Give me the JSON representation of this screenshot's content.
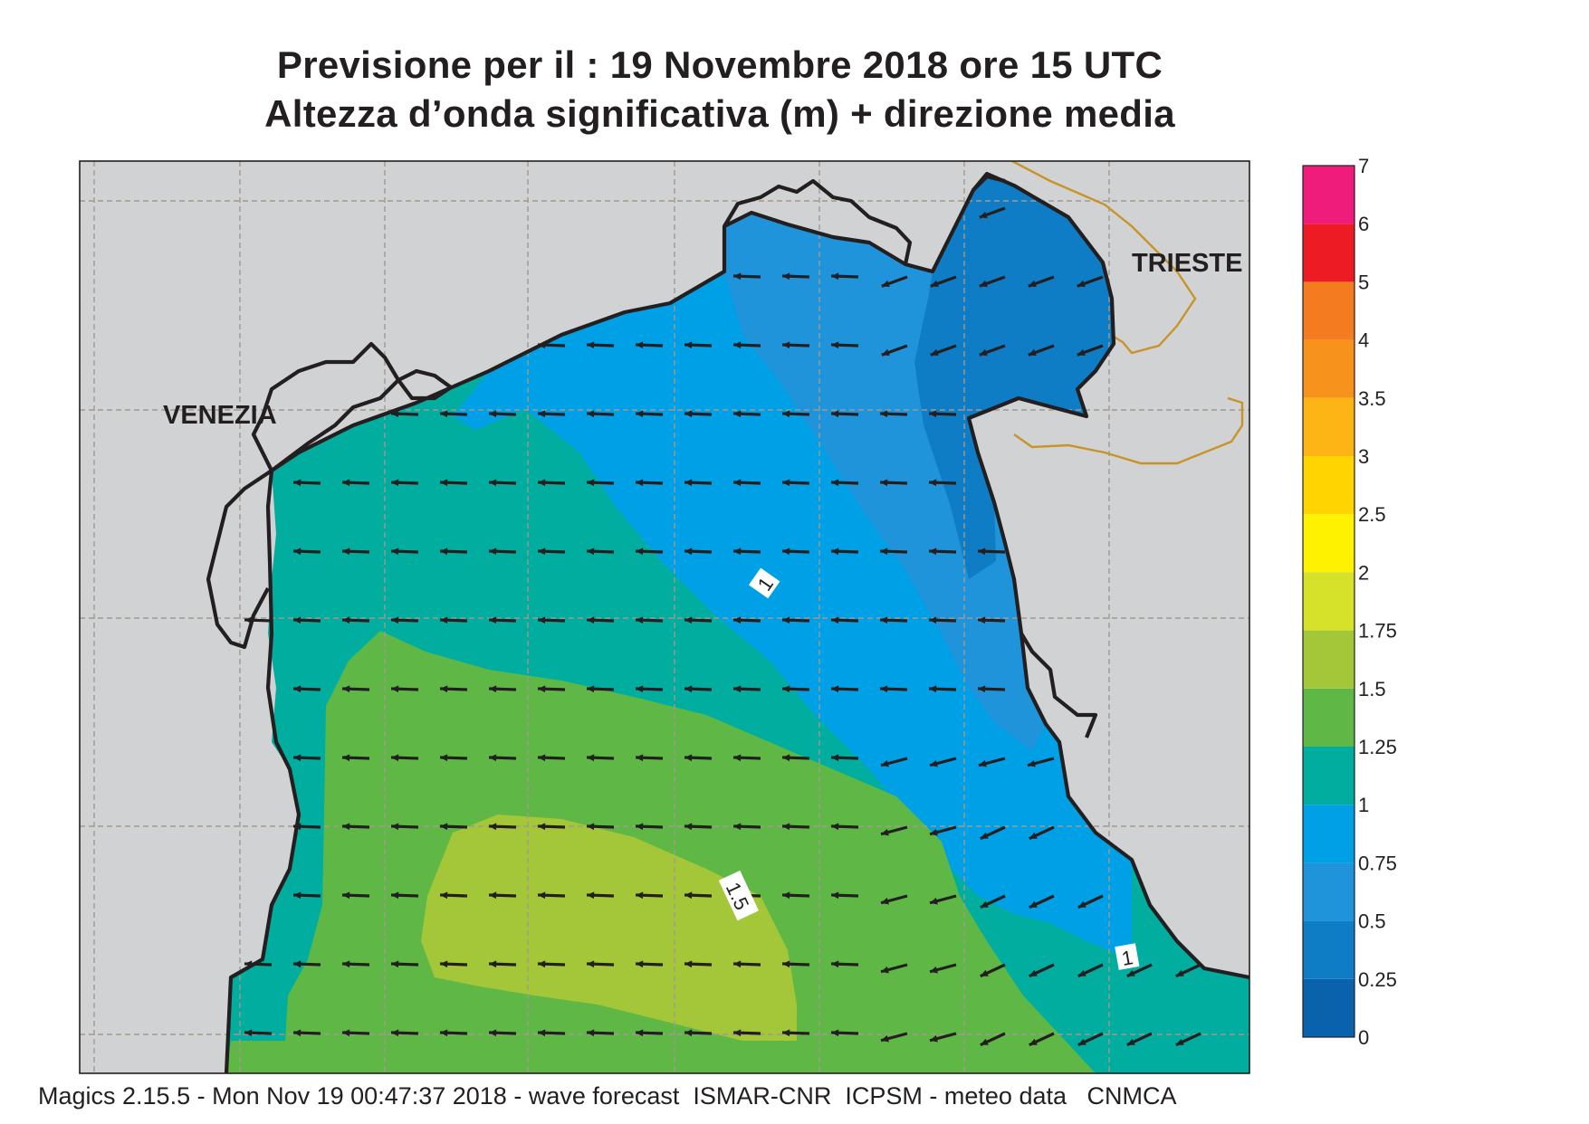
{
  "title_line1": "Previsione per il  :  19 Novembre  2018   ore 15 UTC",
  "title_line2": "Altezza d’onda significativa (m) + direzione media",
  "footer": "Magics 2.15.5 - Mon Nov 19 00:47:37 2018 - wave forecast  ISMAR-CNR  ICPSM - meteo data   CNMCA",
  "cities": [
    {
      "name": "VENEZIA"
    },
    {
      "name": "TRIESTE"
    }
  ],
  "contour_labels": [
    "1",
    "1.5",
    "1"
  ],
  "colorbar": {
    "levels": [
      "0",
      "0.25",
      "0.5",
      "0.75",
      "1",
      "1.25",
      "1.5",
      "1.75",
      "2",
      "2.5",
      "3",
      "3.5",
      "4",
      "5",
      "6",
      "7"
    ],
    "colors": [
      "#0a62ad",
      "#0f7cc6",
      "#1f94db",
      "#00a0e6",
      "#00ad9f",
      "#5fb846",
      "#a4c639",
      "#d6e12a",
      "#fff200",
      "#ffd400",
      "#fdb515",
      "#f7931d",
      "#f47b20",
      "#ed1c24",
      "#ef1c7c"
    ]
  },
  "colors": {
    "land": "#d1d2d3",
    "grid": "#a09a90",
    "border": "#c8942a",
    "coast": "#231f20",
    "arrow": "#231f20"
  }
}
